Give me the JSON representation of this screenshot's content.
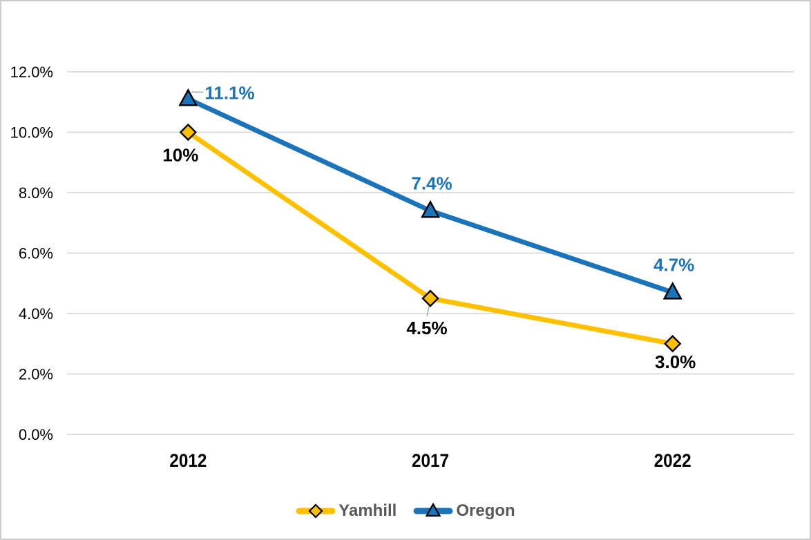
{
  "chart_data": {
    "type": "line",
    "title": "",
    "categories": [
      "2012",
      "2017",
      "2022"
    ],
    "series": [
      {
        "name": "Yamhill",
        "values": [
          10.0,
          4.5,
          3.0
        ],
        "data_labels": [
          {
            "text": "10%",
            "pos": "below-left"
          },
          {
            "text": "4.5%",
            "pos": "below-far",
            "leader": true
          },
          {
            "text": "3.0%",
            "pos": "below"
          }
        ],
        "color": "#FFC000",
        "marker": "diamond",
        "label_color": "#000000"
      },
      {
        "name": "Oregon",
        "values": [
          11.1,
          7.4,
          4.7
        ],
        "data_labels": [
          {
            "text": "11.1%",
            "pos": "right",
            "leader": true
          },
          {
            "text": "7.4%",
            "pos": "above"
          },
          {
            "text": "4.7%",
            "pos": "above"
          }
        ],
        "color": "#1B74B9",
        "marker": "triangle",
        "label_color": "#1B74B9"
      }
    ],
    "y_axis": {
      "min": 0,
      "max": 12,
      "step": 2,
      "tick_labels": [
        "0.0%",
        "2.0%",
        "4.0%",
        "6.0%",
        "8.0%",
        "10.0%",
        "12.0%"
      ]
    },
    "x_axis": {
      "tick_labels": [
        "2012",
        "2017",
        "2022"
      ]
    },
    "grid": true,
    "legend": {
      "position": "bottom",
      "items": [
        "Yamhill",
        "Oregon"
      ]
    }
  },
  "colors": {
    "yamhill_line": "#FFC000",
    "oregon_line": "#1B74B9",
    "gridline": "#D9D9D9",
    "axis_text": "#000000",
    "legend_text": "#595959",
    "frame_border": "#CBCBCB",
    "leader_line": "#A6A6A6",
    "marker_outline": "#000000",
    "background": "#FFFFFF"
  }
}
